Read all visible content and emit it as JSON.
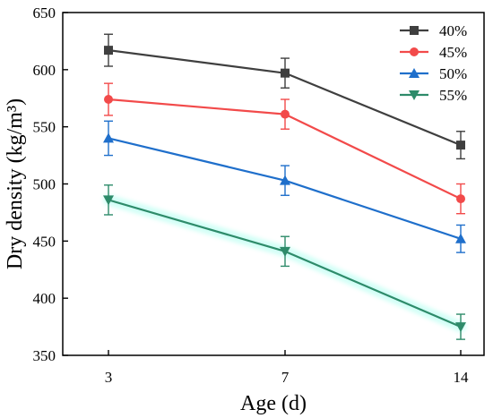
{
  "chart_data": {
    "type": "line",
    "xlabel": "Age (d)",
    "ylabel": "Dry density (kg/m³)",
    "categories": [
      "3",
      "7",
      "14"
    ],
    "ylim": [
      350,
      650
    ],
    "yticks": [
      350,
      400,
      450,
      500,
      550,
      600,
      650
    ],
    "grid": false,
    "legend_position": "top-right",
    "series": [
      {
        "name": "40%",
        "color": "#3f3f3f",
        "marker": "square",
        "values": [
          617,
          597,
          534
        ],
        "errors": [
          14,
          13,
          12
        ]
      },
      {
        "name": "45%",
        "color": "#f24a4a",
        "marker": "circle",
        "values": [
          574,
          561,
          487
        ],
        "errors": [
          14,
          13,
          13
        ]
      },
      {
        "name": "50%",
        "color": "#1f6fcb",
        "marker": "triangle-up",
        "values": [
          540,
          503,
          452
        ],
        "errors": [
          15,
          13,
          12
        ]
      },
      {
        "name": "55%",
        "color": "#2e8b6a",
        "marker": "triangle-down",
        "values": [
          486,
          441,
          375
        ],
        "errors": [
          13,
          13,
          11
        ]
      }
    ]
  }
}
